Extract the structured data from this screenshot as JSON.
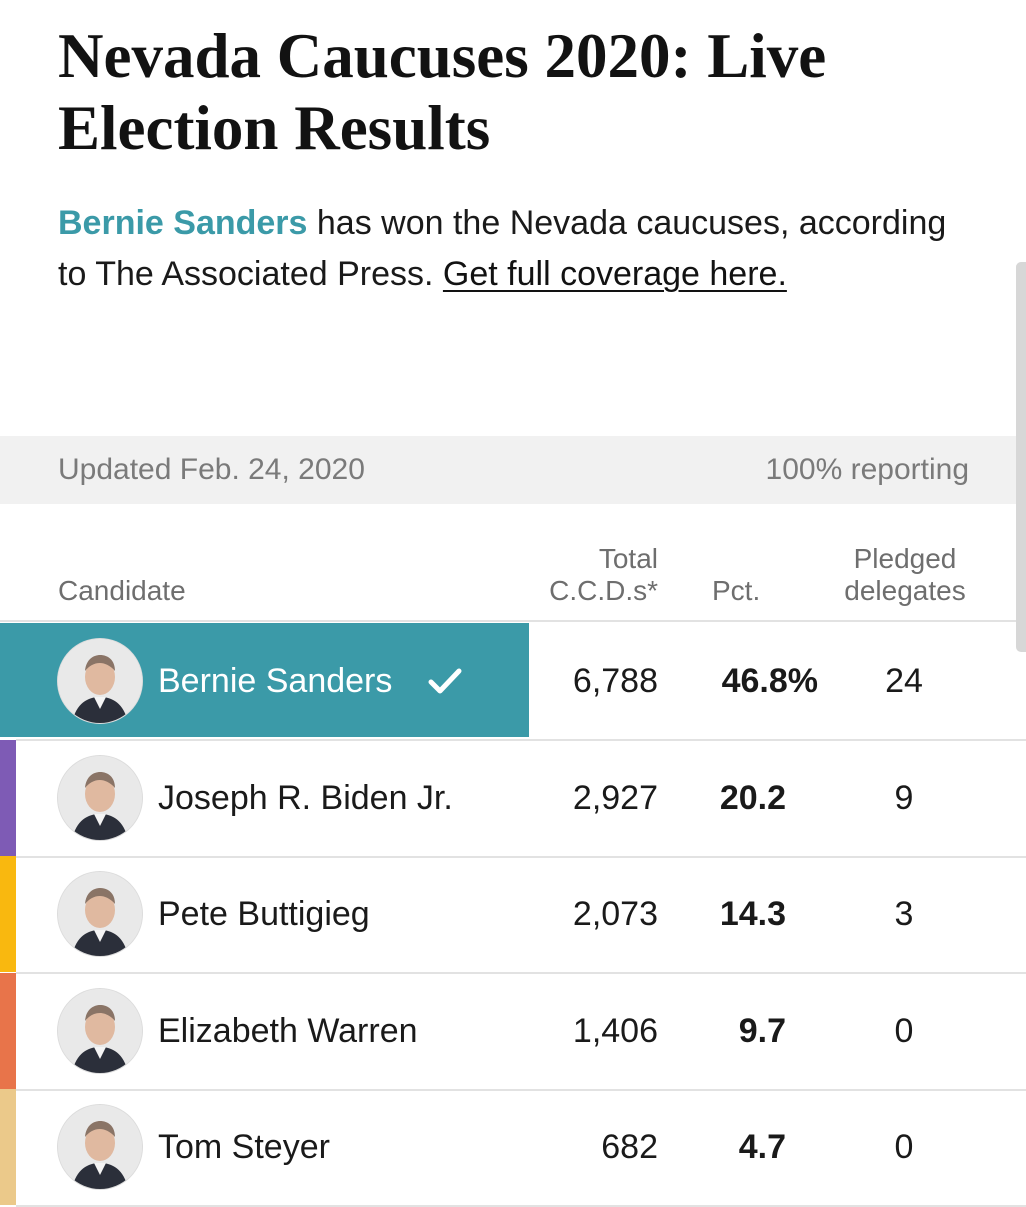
{
  "page": {
    "title": "Nevada Caucuses 2020: Live Election Results"
  },
  "summary": {
    "winner_name": "Bernie Sanders",
    "text": " has won the Nevada caucuses, according to The Associated Press. ",
    "link_label": "Get full coverage here."
  },
  "status": {
    "updated": "Updated Feb. 24, 2020",
    "reporting": "100% reporting"
  },
  "table": {
    "headers": {
      "candidate": "Candidate",
      "votes_line1": "Total",
      "votes_line2": "C.C.D.s*",
      "pct": "Pct.",
      "delegates_line1": "Pledged",
      "delegates_line2": "delegates"
    },
    "rows": [
      {
        "name": "Bernie Sanders",
        "votes": "6,788",
        "pct": "46.8%",
        "delegates": "24",
        "winner": true,
        "color": "#3b9aa8"
      },
      {
        "name": "Joseph R. Biden Jr.",
        "votes": "2,927",
        "pct": "20.2",
        "delegates": "9",
        "winner": false,
        "color": "#7e5bb5"
      },
      {
        "name": "Pete Buttigieg",
        "votes": "2,073",
        "pct": "14.3",
        "delegates": "3",
        "winner": false,
        "color": "#f9b80f"
      },
      {
        "name": "Elizabeth Warren",
        "votes": "1,406",
        "pct": "9.7",
        "delegates": "0",
        "winner": false,
        "color": "#e8744a"
      },
      {
        "name": "Tom Steyer",
        "votes": "682",
        "pct": "4.7",
        "delegates": "0",
        "winner": false,
        "color": "#ebc98a"
      }
    ]
  },
  "icons": {
    "winner_check": "check-icon",
    "avatar": "candidate-portrait-icon"
  }
}
